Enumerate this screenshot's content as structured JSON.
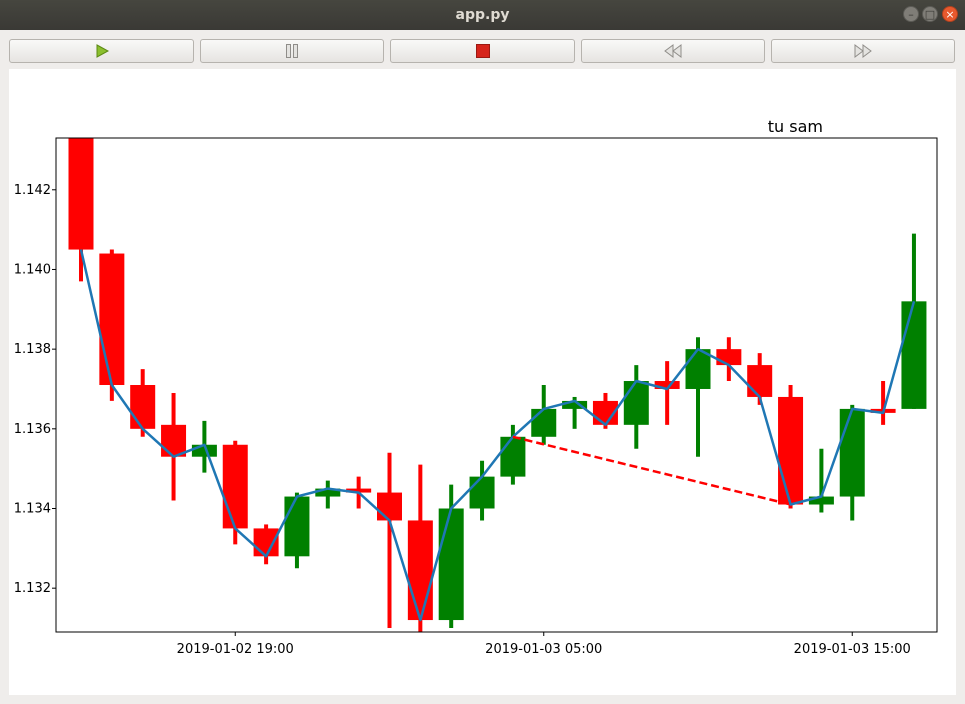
{
  "window": {
    "title": "app.py"
  },
  "toolbar": {
    "buttons": [
      {
        "icon": "play-icon",
        "color": "#8bbf2e"
      },
      {
        "icon": "pause-icon",
        "color": "#9b9995"
      },
      {
        "icon": "stop-icon",
        "color": "#d6241b"
      },
      {
        "icon": "rewind-icon",
        "color": "#9b9995"
      },
      {
        "icon": "fast-forward-icon",
        "color": "#9b9995"
      }
    ]
  },
  "chart_data": {
    "type": "candlestick",
    "title": "tu sam",
    "xlabel": "",
    "ylabel": "",
    "ylim": [
      1.1309,
      1.1433
    ],
    "up_color": "#008000",
    "down_color": "#ff0000",
    "line_color": "#1f77b4",
    "dashed_color": "#ff0000",
    "grid": false,
    "x_ticks": [
      {
        "label": "2019-01-02 19:00",
        "index": 5
      },
      {
        "label": "2019-01-03 05:00",
        "index": 15
      },
      {
        "label": "2019-01-03 15:00",
        "index": 25
      }
    ],
    "y_ticks": [
      1.132,
      1.134,
      1.136,
      1.138,
      1.14,
      1.142
    ],
    "candles": [
      {
        "open": 1.1433,
        "high": 1.1433,
        "low": 1.1397,
        "close": 1.1405
      },
      {
        "open": 1.1404,
        "high": 1.1405,
        "low": 1.1367,
        "close": 1.1371
      },
      {
        "open": 1.1371,
        "high": 1.1375,
        "low": 1.1358,
        "close": 1.136
      },
      {
        "open": 1.1361,
        "high": 1.1369,
        "low": 1.1342,
        "close": 1.1353
      },
      {
        "open": 1.1353,
        "high": 1.1362,
        "low": 1.1349,
        "close": 1.1356
      },
      {
        "open": 1.1356,
        "high": 1.1357,
        "low": 1.1331,
        "close": 1.1335
      },
      {
        "open": 1.1335,
        "high": 1.1336,
        "low": 1.1326,
        "close": 1.1328
      },
      {
        "open": 1.1328,
        "high": 1.1344,
        "low": 1.1325,
        "close": 1.1343
      },
      {
        "open": 1.1343,
        "high": 1.1347,
        "low": 1.134,
        "close": 1.1345
      },
      {
        "open": 1.1345,
        "high": 1.1348,
        "low": 1.134,
        "close": 1.1344
      },
      {
        "open": 1.1344,
        "high": 1.1354,
        "low": 1.131,
        "close": 1.1337
      },
      {
        "open": 1.1337,
        "high": 1.1351,
        "low": 1.1309,
        "close": 1.1312
      },
      {
        "open": 1.1312,
        "high": 1.1346,
        "low": 1.131,
        "close": 1.134
      },
      {
        "open": 1.134,
        "high": 1.1352,
        "low": 1.1337,
        "close": 1.1348
      },
      {
        "open": 1.1348,
        "high": 1.1361,
        "low": 1.1346,
        "close": 1.1358
      },
      {
        "open": 1.1358,
        "high": 1.1371,
        "low": 1.1356,
        "close": 1.1365
      },
      {
        "open": 1.1365,
        "high": 1.1368,
        "low": 1.136,
        "close": 1.1367
      },
      {
        "open": 1.1367,
        "high": 1.1369,
        "low": 1.136,
        "close": 1.1361
      },
      {
        "open": 1.1361,
        "high": 1.1376,
        "low": 1.1355,
        "close": 1.1372
      },
      {
        "open": 1.1372,
        "high": 1.1377,
        "low": 1.1361,
        "close": 1.137
      },
      {
        "open": 1.137,
        "high": 1.1383,
        "low": 1.1353,
        "close": 1.138
      },
      {
        "open": 1.138,
        "high": 1.1383,
        "low": 1.1372,
        "close": 1.1376
      },
      {
        "open": 1.1376,
        "high": 1.1379,
        "low": 1.1366,
        "close": 1.1368
      },
      {
        "open": 1.1368,
        "high": 1.1371,
        "low": 1.134,
        "close": 1.1341
      },
      {
        "open": 1.1341,
        "high": 1.1355,
        "low": 1.1339,
        "close": 1.1343
      },
      {
        "open": 1.1343,
        "high": 1.1366,
        "low": 1.1337,
        "close": 1.1365
      },
      {
        "open": 1.1365,
        "high": 1.1372,
        "low": 1.1361,
        "close": 1.1364
      },
      {
        "open": 1.1365,
        "high": 1.1409,
        "low": 1.1365,
        "close": 1.1392
      }
    ],
    "line_values": [
      1.1405,
      1.1371,
      1.136,
      1.1353,
      1.1356,
      1.1335,
      1.1328,
      1.1343,
      1.1345,
      1.1344,
      1.1337,
      1.1312,
      1.134,
      1.1348,
      1.1358,
      1.1365,
      1.1367,
      1.1361,
      1.1372,
      1.137,
      1.138,
      1.1376,
      1.1368,
      1.1341,
      1.1343,
      1.1365,
      1.1364,
      1.1392
    ],
    "dashed_segment": {
      "from": {
        "index": 14,
        "value": 1.1358
      },
      "to": {
        "index": 23,
        "value": 1.1341
      }
    }
  }
}
